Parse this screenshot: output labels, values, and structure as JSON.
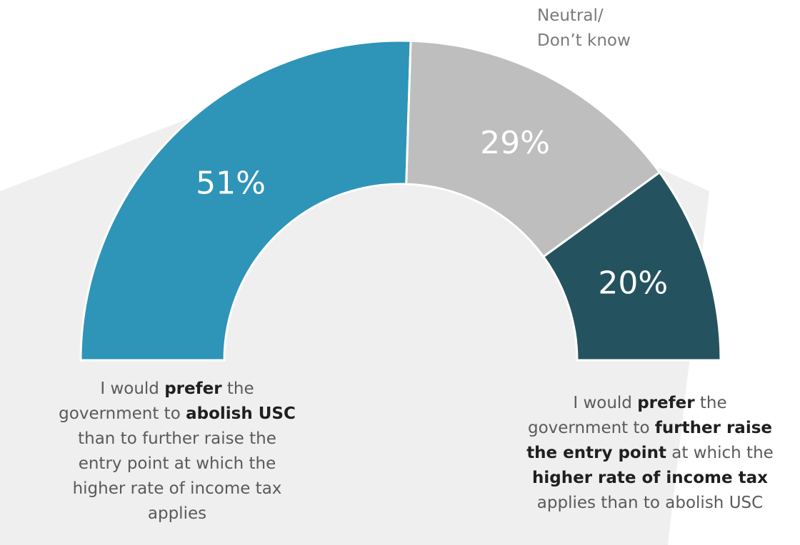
{
  "chart_data": {
    "type": "pie",
    "shape": "half-donut",
    "categories": [
      [
        [
          {
            "text": "I would "
          },
          {
            "text": "prefer",
            "bold": true
          },
          {
            "text": " the"
          }
        ],
        [
          {
            "text": "government to "
          },
          {
            "text": "abolish USC",
            "bold": true
          }
        ],
        [
          {
            "text": "than to further raise the"
          }
        ],
        [
          {
            "text": "entry point at which the"
          }
        ],
        [
          {
            "text": "higher rate of income tax"
          }
        ],
        [
          {
            "text": "applies"
          }
        ]
      ],
      [
        [
          {
            "text": "Neutral/"
          }
        ],
        [
          {
            "text": "Don’t know"
          }
        ]
      ],
      [
        [
          {
            "text": "I would "
          },
          {
            "text": "prefer",
            "bold": true
          },
          {
            "text": " the"
          }
        ],
        [
          {
            "text": "government to "
          },
          {
            "text": "further raise",
            "bold": true
          }
        ],
        [
          {
            "text": "the entry point",
            "bold": true
          },
          {
            "text": " at which the"
          }
        ],
        [
          {
            "text": "higher rate of income tax",
            "bold": true
          }
        ],
        [
          {
            "text": "applies than to abolish USC"
          }
        ]
      ]
    ],
    "values": [
      51,
      29,
      20
    ],
    "value_labels": [
      "51%",
      "29%",
      "20%"
    ],
    "colors": [
      "#2e94b8",
      "#bebebe",
      "#24535f"
    ]
  }
}
